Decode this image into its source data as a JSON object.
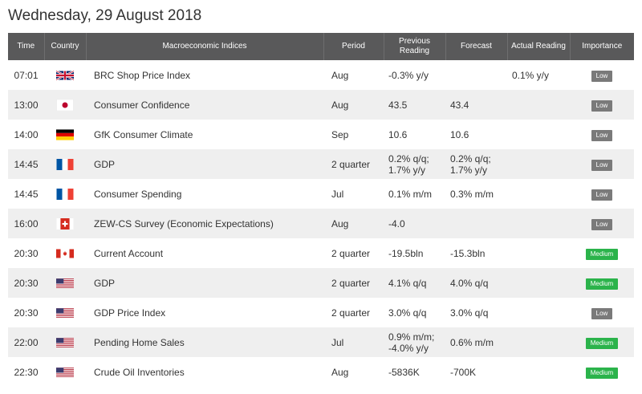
{
  "header": {
    "date": "Wednesday, 29 August 2018"
  },
  "columns": {
    "time": "Time",
    "country": "Country",
    "indices": "Macroeconomic Indices",
    "period": "Period",
    "previous": "Previous Reading",
    "forecast": "Forecast",
    "actual": "Actual Reading",
    "importance": "Importance"
  },
  "colors": {
    "header_bg": "#59595a",
    "low_badge": "#7a7a7a",
    "medium_badge": "#2bb34b",
    "odd_row": "#efefef"
  },
  "rows": [
    {
      "time": "07:01",
      "country": "uk-flag-icon",
      "name": "BRC Shop Price Index",
      "period": "Aug",
      "previous": "-0.3% y/y",
      "forecast": "",
      "actual": "0.1% y/y",
      "importance": "Low",
      "level": "low"
    },
    {
      "time": "13:00",
      "country": "japan-flag-icon",
      "name": "Consumer Confidence",
      "period": "Aug",
      "previous": "43.5",
      "forecast": "43.4",
      "actual": "",
      "importance": "Low",
      "level": "low"
    },
    {
      "time": "14:00",
      "country": "germany-flag-icon",
      "name": "GfK Consumer Climate",
      "period": "Sep",
      "previous": "10.6",
      "forecast": "10.6",
      "actual": "",
      "importance": "Low",
      "level": "low"
    },
    {
      "time": "14:45",
      "country": "france-flag-icon",
      "name": "GDP",
      "period": "2 quarter",
      "previous": "0.2% q/q; 1.7% y/y",
      "forecast": "0.2% q/q; 1.7% y/y",
      "actual": "",
      "importance": "Low",
      "level": "low"
    },
    {
      "time": "14:45",
      "country": "france-flag-icon",
      "name": "Consumer Spending",
      "period": "Jul",
      "previous": "0.1% m/m",
      "forecast": "0.3% m/m",
      "actual": "",
      "importance": "Low",
      "level": "low"
    },
    {
      "time": "16:00",
      "country": "switzerland-flag-icon",
      "name": "ZEW-CS Survey (Economic Expectations)",
      "period": "Aug",
      "previous": "-4.0",
      "forecast": "",
      "actual": "",
      "importance": "Low",
      "level": "low"
    },
    {
      "time": "20:30",
      "country": "canada-flag-icon",
      "name": "Current Account",
      "period": "2 quarter",
      "previous": "-19.5bln",
      "forecast": "-15.3bln",
      "actual": "",
      "importance": "Medium",
      "level": "medium"
    },
    {
      "time": "20:30",
      "country": "usa-flag-icon",
      "name": "GDP",
      "period": "2 quarter",
      "previous": "4.1% q/q",
      "forecast": "4.0% q/q",
      "actual": "",
      "importance": "Medium",
      "level": "medium"
    },
    {
      "time": "20:30",
      "country": "usa-flag-icon",
      "name": "GDP Price Index",
      "period": "2 quarter",
      "previous": "3.0% q/q",
      "forecast": "3.0% q/q",
      "actual": "",
      "importance": "Low",
      "level": "low"
    },
    {
      "time": "22:00",
      "country": "usa-flag-icon",
      "name": "Pending Home Sales",
      "period": "Jul",
      "previous": "0.9% m/m; -4.0% y/y",
      "forecast": "0.6% m/m",
      "actual": "",
      "importance": "Medium",
      "level": "medium"
    },
    {
      "time": "22:30",
      "country": "usa-flag-icon",
      "name": "Crude Oil Inventories",
      "period": "Aug",
      "previous": "-5836K",
      "forecast": "-700K",
      "actual": "",
      "importance": "Medium",
      "level": "medium"
    }
  ]
}
